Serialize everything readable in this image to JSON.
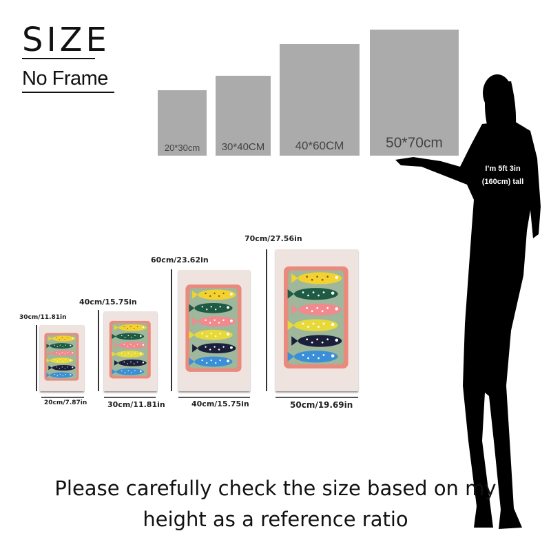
{
  "header": {
    "title": "SIZE",
    "subtitle": "No Frame"
  },
  "size_boxes": [
    {
      "label": "20*30cm"
    },
    {
      "label": "30*40CM"
    },
    {
      "label": "40*60CM"
    },
    {
      "label": "50*70cm"
    }
  ],
  "person_note": {
    "line1": "I’m 5ft 3in",
    "line2": "(160cm) tall"
  },
  "prints": [
    {
      "height_label": "30cm/11.81in",
      "width_label": "20cm/7.87in"
    },
    {
      "height_label": "40cm/15.75in",
      "width_label": "30cm/11.81in"
    },
    {
      "height_label": "60cm/23.62in",
      "width_label": "40cm/15.75in"
    },
    {
      "height_label": "70cm/27.56in",
      "width_label": "50cm/19.69in"
    }
  ],
  "artwork": {
    "tray_color": "#e98a7c",
    "background_color": "#9fb89c",
    "fish_colors": [
      "#f2d22e",
      "#1f5a45",
      "#f08a8f",
      "#e8d93a",
      "#1b1f3a",
      "#3b8fd6"
    ]
  },
  "footer": {
    "line1": "Please carefully check the size based on my",
    "line2": "height as a reference ratio"
  }
}
